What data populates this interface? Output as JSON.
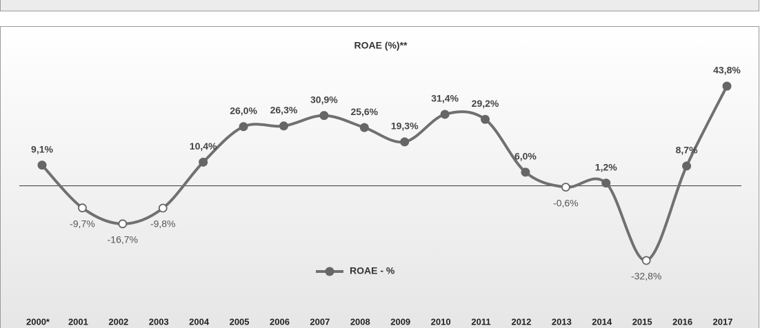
{
  "chart_data": {
    "type": "line",
    "title": "ROAE (%)**",
    "categories": [
      "2000*",
      "2001",
      "2002",
      "2003",
      "2004",
      "2005",
      "2006",
      "2007",
      "2008",
      "2009",
      "2010",
      "2011",
      "2012",
      "2013",
      "2014",
      "2015",
      "2016",
      "2017"
    ],
    "series": [
      {
        "name": "ROAE - %",
        "color": "#707070",
        "values": [
          9.1,
          -9.7,
          -16.7,
          -9.8,
          10.4,
          26.0,
          26.3,
          30.9,
          25.6,
          19.3,
          31.4,
          29.2,
          6.0,
          -0.6,
          1.2,
          -32.8,
          8.7,
          43.8
        ],
        "value_labels": [
          "9,1%",
          "-9,7%",
          "-16,7%",
          "-9,8%",
          "10,4%",
          "26,0%",
          "26,3%",
          "30,9%",
          "25,6%",
          "19,3%",
          "31,4%",
          "29,2%",
          "6,0%",
          "-0,6%",
          "1,2%",
          "-32,8%",
          "8,7%",
          "43,8%"
        ]
      }
    ]
  }
}
